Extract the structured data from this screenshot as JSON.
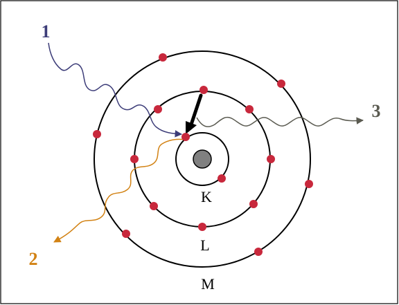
{
  "diagram": {
    "shell_labels": {
      "k": "K",
      "l": "L",
      "m": "M"
    },
    "ray_labels": {
      "one": "1",
      "two": "2",
      "three": "3"
    },
    "colors": {
      "border": "#000000",
      "shell": "#000000",
      "nucleus": "#808080",
      "electron": "#c8283c",
      "ray_1": "#3c3c78",
      "ray_2": "#d28214",
      "ray_3": "#5a5a50",
      "transition_arrow": "#000000"
    }
  }
}
